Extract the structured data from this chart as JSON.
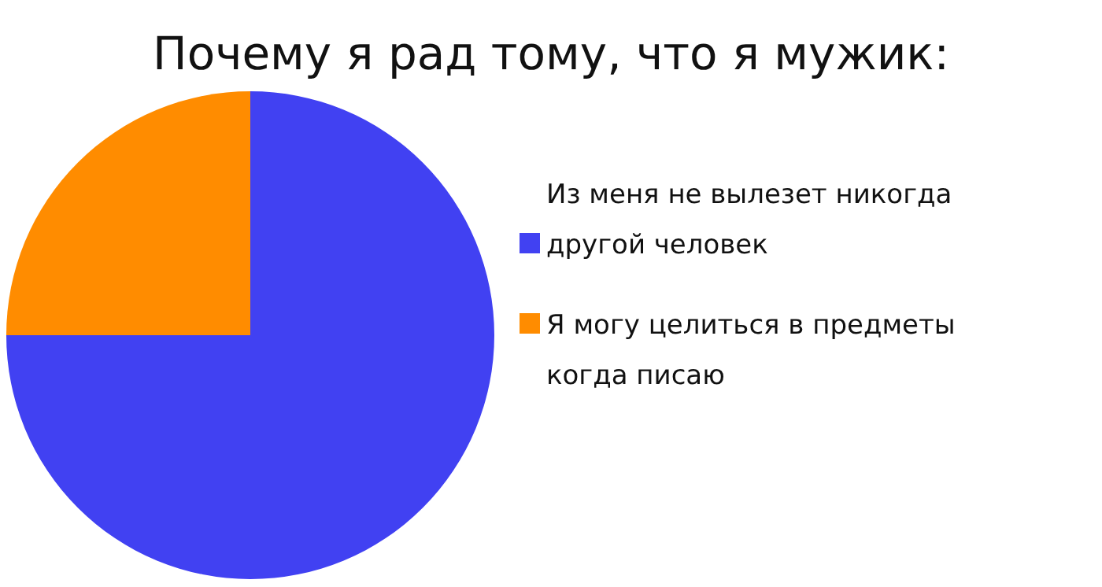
{
  "chart_data": {
    "type": "pie",
    "title": "Почему я рад тому, что я мужик:",
    "categories": [
      "Из меня не вылезет никогда другой человек",
      "Я могу целиться в предметы когда писаю"
    ],
    "values": [
      75,
      25
    ],
    "colors": [
      "#4141f2",
      "#ff8c00"
    ],
    "legend": "right"
  }
}
